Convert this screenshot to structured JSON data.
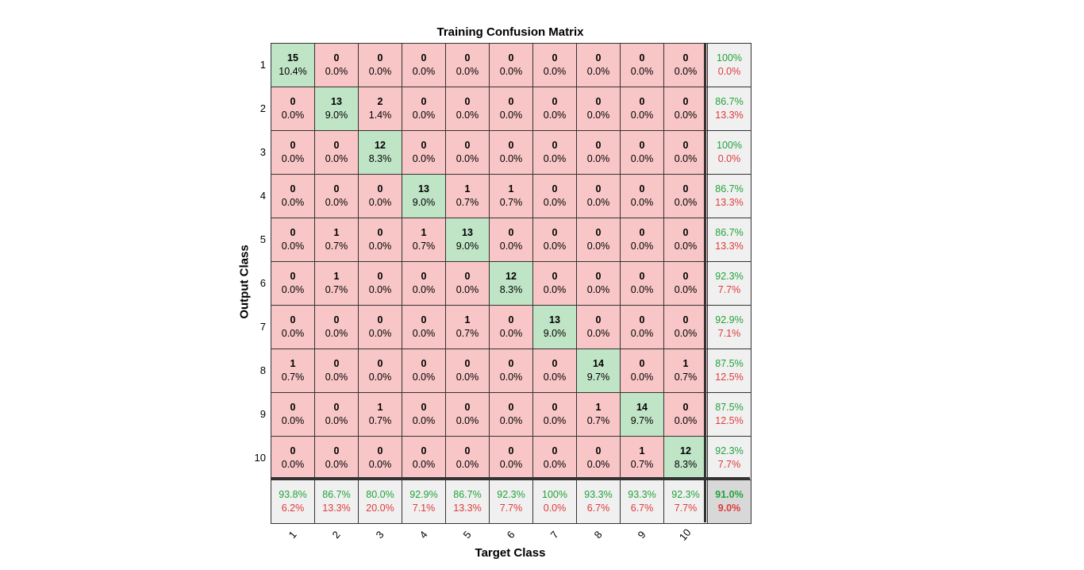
{
  "chart_data": {
    "type": "heatmap",
    "title": "Training Confusion Matrix",
    "xlabel": "Target Class",
    "ylabel": "Output Class",
    "classes": [
      "1",
      "2",
      "3",
      "4",
      "5",
      "6",
      "7",
      "8",
      "9",
      "10"
    ],
    "counts": [
      [
        15,
        0,
        0,
        0,
        0,
        0,
        0,
        0,
        0,
        0
      ],
      [
        0,
        13,
        2,
        0,
        0,
        0,
        0,
        0,
        0,
        0
      ],
      [
        0,
        0,
        12,
        0,
        0,
        0,
        0,
        0,
        0,
        0
      ],
      [
        0,
        0,
        0,
        13,
        1,
        1,
        0,
        0,
        0,
        0
      ],
      [
        0,
        1,
        0,
        1,
        13,
        0,
        0,
        0,
        0,
        0
      ],
      [
        0,
        1,
        0,
        0,
        0,
        12,
        0,
        0,
        0,
        0
      ],
      [
        0,
        0,
        0,
        0,
        1,
        0,
        13,
        0,
        0,
        0
      ],
      [
        1,
        0,
        0,
        0,
        0,
        0,
        0,
        14,
        0,
        1
      ],
      [
        0,
        0,
        1,
        0,
        0,
        0,
        0,
        1,
        14,
        0
      ],
      [
        0,
        0,
        0,
        0,
        0,
        0,
        0,
        0,
        1,
        12
      ]
    ],
    "percents": [
      [
        "10.4%",
        "0.0%",
        "0.0%",
        "0.0%",
        "0.0%",
        "0.0%",
        "0.0%",
        "0.0%",
        "0.0%",
        "0.0%"
      ],
      [
        "0.0%",
        "9.0%",
        "1.4%",
        "0.0%",
        "0.0%",
        "0.0%",
        "0.0%",
        "0.0%",
        "0.0%",
        "0.0%"
      ],
      [
        "0.0%",
        "0.0%",
        "8.3%",
        "0.0%",
        "0.0%",
        "0.0%",
        "0.0%",
        "0.0%",
        "0.0%",
        "0.0%"
      ],
      [
        "0.0%",
        "0.0%",
        "0.0%",
        "9.0%",
        "0.7%",
        "0.7%",
        "0.0%",
        "0.0%",
        "0.0%",
        "0.0%"
      ],
      [
        "0.0%",
        "0.7%",
        "0.0%",
        "0.7%",
        "9.0%",
        "0.0%",
        "0.0%",
        "0.0%",
        "0.0%",
        "0.0%"
      ],
      [
        "0.0%",
        "0.7%",
        "0.0%",
        "0.0%",
        "0.0%",
        "8.3%",
        "0.0%",
        "0.0%",
        "0.0%",
        "0.0%"
      ],
      [
        "0.0%",
        "0.0%",
        "0.0%",
        "0.0%",
        "0.7%",
        "0.0%",
        "9.0%",
        "0.0%",
        "0.0%",
        "0.0%"
      ],
      [
        "0.7%",
        "0.0%",
        "0.0%",
        "0.0%",
        "0.0%",
        "0.0%",
        "0.0%",
        "9.7%",
        "0.0%",
        "0.7%"
      ],
      [
        "0.0%",
        "0.0%",
        "0.7%",
        "0.0%",
        "0.0%",
        "0.0%",
        "0.0%",
        "0.7%",
        "9.7%",
        "0.0%"
      ],
      [
        "0.0%",
        "0.0%",
        "0.0%",
        "0.0%",
        "0.0%",
        "0.0%",
        "0.0%",
        "0.0%",
        "0.7%",
        "8.3%"
      ]
    ],
    "row_summary": [
      [
        "100%",
        "0.0%"
      ],
      [
        "86.7%",
        "13.3%"
      ],
      [
        "100%",
        "0.0%"
      ],
      [
        "86.7%",
        "13.3%"
      ],
      [
        "86.7%",
        "13.3%"
      ],
      [
        "92.3%",
        "7.7%"
      ],
      [
        "92.9%",
        "7.1%"
      ],
      [
        "87.5%",
        "12.5%"
      ],
      [
        "87.5%",
        "12.5%"
      ],
      [
        "92.3%",
        "7.7%"
      ]
    ],
    "col_summary": [
      [
        "93.8%",
        "6.2%"
      ],
      [
        "86.7%",
        "13.3%"
      ],
      [
        "80.0%",
        "20.0%"
      ],
      [
        "92.9%",
        "7.1%"
      ],
      [
        "86.7%",
        "13.3%"
      ],
      [
        "92.3%",
        "7.7%"
      ],
      [
        "100%",
        "0.0%"
      ],
      [
        "93.3%",
        "6.7%"
      ],
      [
        "93.3%",
        "6.7%"
      ],
      [
        "92.3%",
        "7.7%"
      ]
    ],
    "overall": [
      "91.0%",
      "9.0%"
    ],
    "colors": {
      "diag": "#c0e4c6",
      "offdiag": "#f8c6c6",
      "summary": "#f0f0f0",
      "total": "#d8d8d8",
      "good": "#21a339",
      "bad": "#e03a3a"
    }
  }
}
